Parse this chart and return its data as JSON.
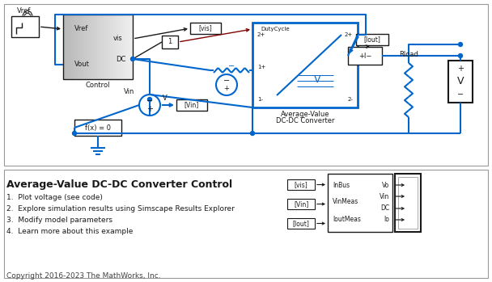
{
  "bg_color": "#ffffff",
  "border_color": "#aaaaaa",
  "blue": "#0066cc",
  "black": "#1a1a1a",
  "title": "Average-Value DC-DC Converter Control",
  "bullets": [
    "1.  Plot voltage (see code)",
    "2.  Explore simulation results using Simscape Results Explorer",
    "3.  Modify model parameters",
    "4.  Learn more about this example"
  ],
  "copyright": "Copyright 2016-2023 The MathWorks, Inc."
}
